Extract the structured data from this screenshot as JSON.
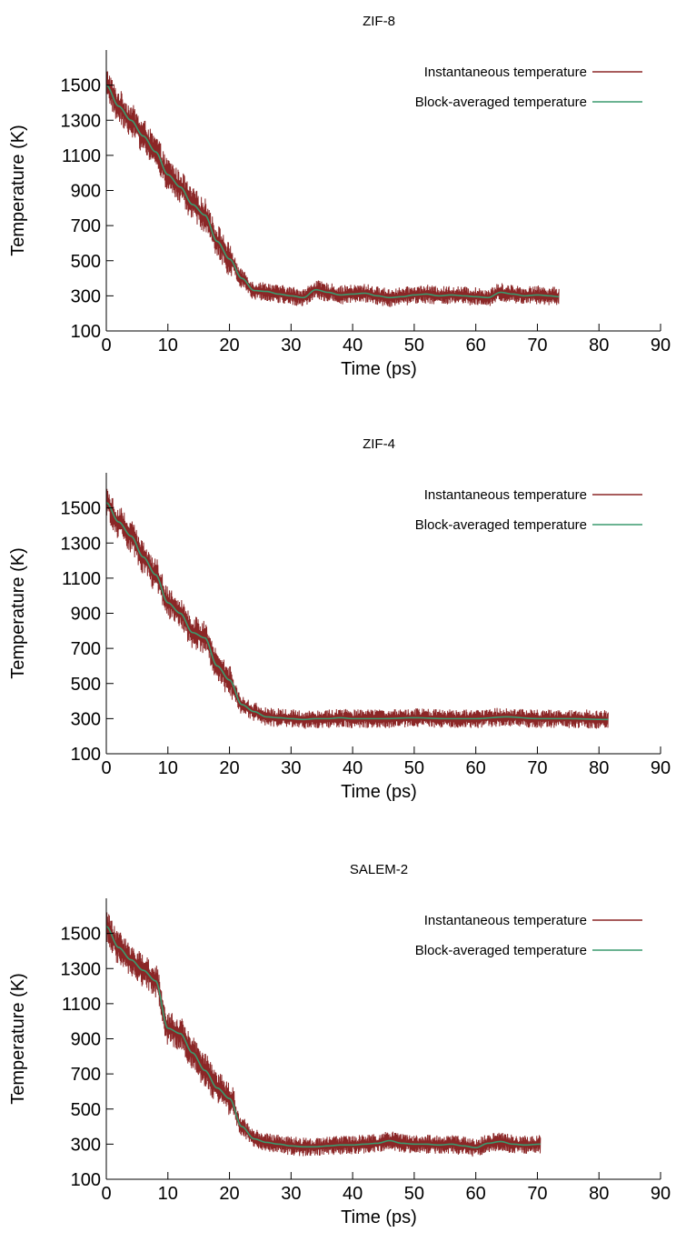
{
  "colors": {
    "instantaneous": "#8b2626",
    "block_averaged": "#3a9a6e",
    "axis": "#000000"
  },
  "chart_data": [
    {
      "type": "line",
      "title": "ZIF-8",
      "xlabel": "Time (ps)",
      "ylabel": "Temperature (K)",
      "xlim": [
        0,
        90
      ],
      "ylim": [
        100,
        1700
      ],
      "xticks": [
        0,
        10,
        20,
        30,
        40,
        50,
        60,
        70,
        80,
        90
      ],
      "yticks": [
        100,
        300,
        500,
        700,
        900,
        1100,
        1300,
        1500
      ],
      "legend_position": "top-right",
      "grid": false,
      "series": [
        {
          "name": "Instantaneous temperature",
          "style": "noisy",
          "amplitude": 60,
          "x_end": 73.5
        },
        {
          "name": "Block-averaged temperature",
          "style": "smooth",
          "x": [
            0,
            2,
            4,
            6,
            8,
            10,
            12,
            14,
            16,
            18,
            20,
            22,
            24,
            26,
            28,
            30,
            32,
            34,
            36,
            38,
            40,
            42,
            44,
            46,
            48,
            50,
            52,
            54,
            56,
            58,
            60,
            62,
            64,
            66,
            68,
            70,
            72,
            73.5
          ],
          "y": [
            1500,
            1380,
            1300,
            1210,
            1120,
            990,
            920,
            820,
            760,
            610,
            510,
            400,
            330,
            325,
            310,
            300,
            290,
            335,
            320,
            305,
            310,
            315,
            300,
            290,
            295,
            305,
            310,
            300,
            305,
            300,
            295,
            290,
            320,
            310,
            300,
            305,
            300,
            295
          ]
        }
      ]
    },
    {
      "type": "line",
      "title": "ZIF-4",
      "xlabel": "Time (ps)",
      "ylabel": "Temperature (K)",
      "xlim": [
        0,
        90
      ],
      "ylim": [
        100,
        1700
      ],
      "xticks": [
        0,
        10,
        20,
        30,
        40,
        50,
        60,
        70,
        80,
        90
      ],
      "yticks": [
        100,
        300,
        500,
        700,
        900,
        1100,
        1300,
        1500
      ],
      "legend_position": "top-right",
      "grid": false,
      "series": [
        {
          "name": "Instantaneous temperature",
          "style": "noisy",
          "amplitude": 60,
          "x_end": 81.5
        },
        {
          "name": "Block-averaged temperature",
          "style": "smooth",
          "x": [
            0,
            2,
            4,
            6,
            8,
            10,
            12,
            14,
            16,
            18,
            20,
            22,
            24,
            26,
            28,
            30,
            32,
            34,
            36,
            38,
            40,
            45,
            50,
            55,
            60,
            65,
            70,
            75,
            81.5
          ],
          "y": [
            1530,
            1420,
            1340,
            1220,
            1120,
            960,
            900,
            790,
            760,
            600,
            520,
            380,
            340,
            310,
            305,
            300,
            295,
            300,
            300,
            305,
            300,
            300,
            305,
            300,
            300,
            310,
            300,
            300,
            295
          ]
        }
      ]
    },
    {
      "type": "line",
      "title": "SALEM-2",
      "xlabel": "Time (ps)",
      "ylabel": "Temperature (K)",
      "xlim": [
        0,
        90
      ],
      "ylim": [
        100,
        1700
      ],
      "xticks": [
        0,
        10,
        20,
        30,
        40,
        50,
        60,
        70,
        80,
        90
      ],
      "yticks": [
        100,
        300,
        500,
        700,
        900,
        1100,
        1300,
        1500
      ],
      "legend_position": "top-right",
      "grid": false,
      "series": [
        {
          "name": "Instantaneous temperature",
          "style": "noisy",
          "amplitude": 60,
          "x_end": 70.5
        },
        {
          "name": "Block-averaged temperature",
          "style": "smooth",
          "x": [
            0,
            2,
            4,
            6,
            8,
            10,
            12,
            14,
            16,
            18,
            20,
            22,
            24,
            26,
            28,
            30,
            32,
            34,
            36,
            38,
            40,
            42,
            44,
            46,
            48,
            50,
            52,
            54,
            56,
            58,
            60,
            62,
            64,
            66,
            68,
            70.5
          ],
          "y": [
            1540,
            1420,
            1350,
            1290,
            1230,
            960,
            930,
            820,
            720,
            620,
            560,
            400,
            330,
            310,
            300,
            290,
            285,
            285,
            290,
            295,
            295,
            300,
            305,
            320,
            305,
            300,
            300,
            295,
            300,
            290,
            280,
            305,
            315,
            300,
            295,
            300
          ]
        }
      ]
    }
  ]
}
